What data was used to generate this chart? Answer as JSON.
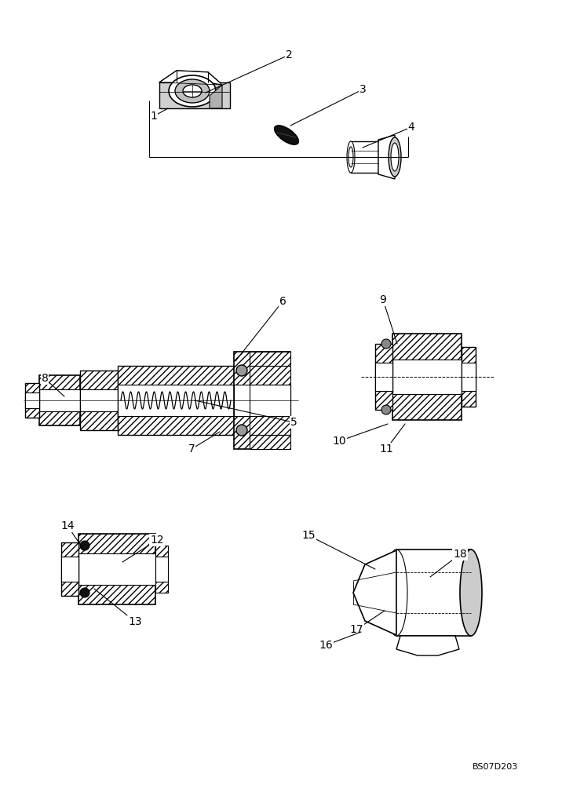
{
  "bg_color": "#ffffff",
  "line_color": "#000000",
  "figsize": [
    7.16,
    10.0
  ],
  "dpi": 100,
  "hatch": "////",
  "lw": 1.0
}
